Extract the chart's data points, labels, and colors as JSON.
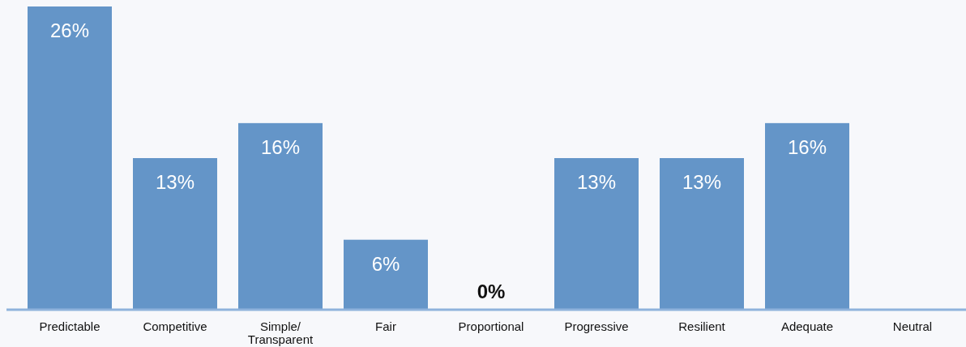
{
  "chart_data": {
    "type": "bar",
    "categories": [
      "Predictable",
      "Competitive",
      "Simple/ Transparent",
      "Fair",
      "Proportional",
      "Progressive",
      "Resilient",
      "Adequate",
      "Neutral"
    ],
    "values": [
      26,
      13,
      16,
      6,
      0,
      13,
      13,
      16,
      0
    ],
    "value_labels": [
      "26%",
      "13%",
      "16%",
      "6%",
      "0%",
      "13%",
      "13%",
      "16%",
      null
    ],
    "color": "#6495c8",
    "ylim": [
      0,
      26
    ]
  }
}
